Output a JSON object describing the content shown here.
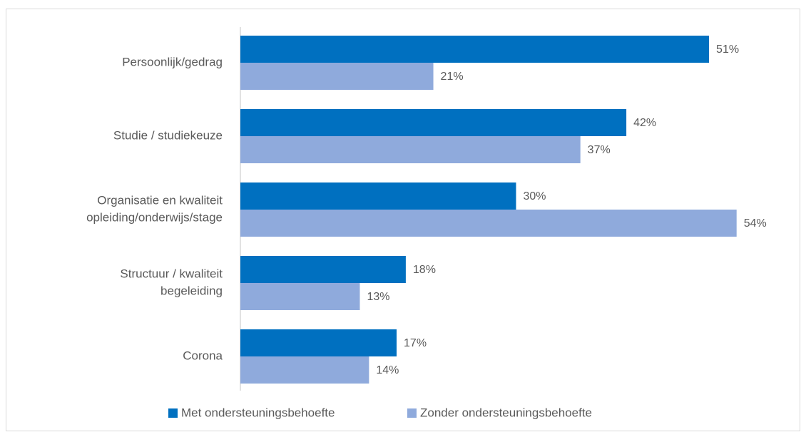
{
  "chart_data": {
    "type": "bar",
    "orientation": "horizontal",
    "categories": [
      [
        "Persoonlijk/gedrag"
      ],
      [
        "Studie / studiekeuze"
      ],
      [
        "Organisatie en kwaliteit",
        "opleiding/onderwijs/stage"
      ],
      [
        "Structuur / kwaliteit",
        "begeleiding"
      ],
      [
        "Corona"
      ]
    ],
    "series": [
      {
        "name": "Met ondersteuningsbehoefte",
        "color": "#0070c0",
        "values": [
          51,
          42,
          30,
          18,
          17
        ],
        "value_labels": [
          "51%",
          "42%",
          "30%",
          "18%",
          "17%"
        ]
      },
      {
        "name": "Zonder ondersteuningsbehoefte",
        "color": "#8faadc",
        "values": [
          21,
          37,
          54,
          13,
          14
        ],
        "value_labels": [
          "21%",
          "37%",
          "54%",
          "13%",
          "14%"
        ]
      }
    ],
    "xlim": [
      0,
      60
    ],
    "legend": "bottom"
  }
}
